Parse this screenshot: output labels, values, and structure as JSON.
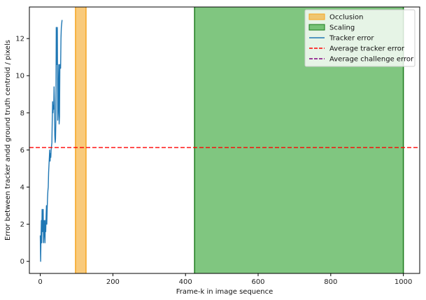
{
  "chart_data": {
    "type": "line",
    "title": "",
    "xlabel": "Frame-k in image sequence",
    "ylabel": "Error between tracker andd ground truth centroid / pixels",
    "xlim": [
      -30,
      1045
    ],
    "ylim": [
      -0.65,
      13.7
    ],
    "x_ticks": [
      0,
      200,
      400,
      600,
      800,
      1000
    ],
    "y_ticks": [
      0,
      2,
      4,
      6,
      8,
      10,
      12
    ],
    "grid": false,
    "legend_position": "top-right",
    "spans": [
      {
        "name": "Occlusion",
        "x_start": 97,
        "x_end": 126,
        "color": "#f5a623",
        "edge": "#f5a623"
      },
      {
        "name": "Scaling",
        "x_start": 425,
        "x_end": 1000,
        "color": "#2ca02c",
        "edge": "#1a7a1a"
      }
    ],
    "series": [
      {
        "name": "Tracker error",
        "color": "#1f77b4",
        "style": "solid",
        "x": [
          0,
          1,
          2,
          3,
          4,
          5,
          6,
          7,
          8,
          9,
          10,
          11,
          12,
          13,
          14,
          15,
          16,
          17,
          18,
          19,
          20,
          21,
          22,
          23,
          24,
          25,
          26,
          27,
          28,
          29,
          30,
          31,
          32,
          33,
          34,
          35,
          36,
          37,
          38,
          39,
          40,
          41,
          42,
          43,
          44,
          45,
          46,
          47,
          48,
          49,
          50,
          51,
          52,
          53,
          54,
          55,
          56,
          57,
          58,
          59,
          60
        ],
        "y": [
          1.4,
          0.0,
          1.2,
          2.2,
          1.0,
          2.8,
          1.6,
          2.4,
          2.8,
          1.0,
          1.8,
          2.2,
          1.4,
          1.0,
          2.2,
          1.6,
          2.4,
          3.0,
          2.0,
          2.8,
          3.4,
          3.8,
          4.0,
          4.8,
          5.2,
          5.6,
          6.0,
          5.4,
          5.8,
          5.6,
          6.0,
          6.2,
          6.4,
          7.6,
          8.6,
          8.0,
          8.4,
          8.2,
          9.4,
          8.6,
          6.8,
          6.4,
          6.6,
          7.6,
          12.6,
          11.8,
          10.6,
          12.6,
          7.6,
          8.0,
          9.6,
          10.6,
          7.4,
          7.8,
          10.6,
          10.4,
          10.4,
          12.0,
          12.6,
          12.8,
          13.0
        ]
      },
      {
        "name": "Average tracker error",
        "color": "#ff0000",
        "style": "dashed",
        "y_value": 6.13
      },
      {
        "name": "Average challenge error",
        "color": "#800080",
        "style": "dashed",
        "y_value": null
      }
    ]
  }
}
